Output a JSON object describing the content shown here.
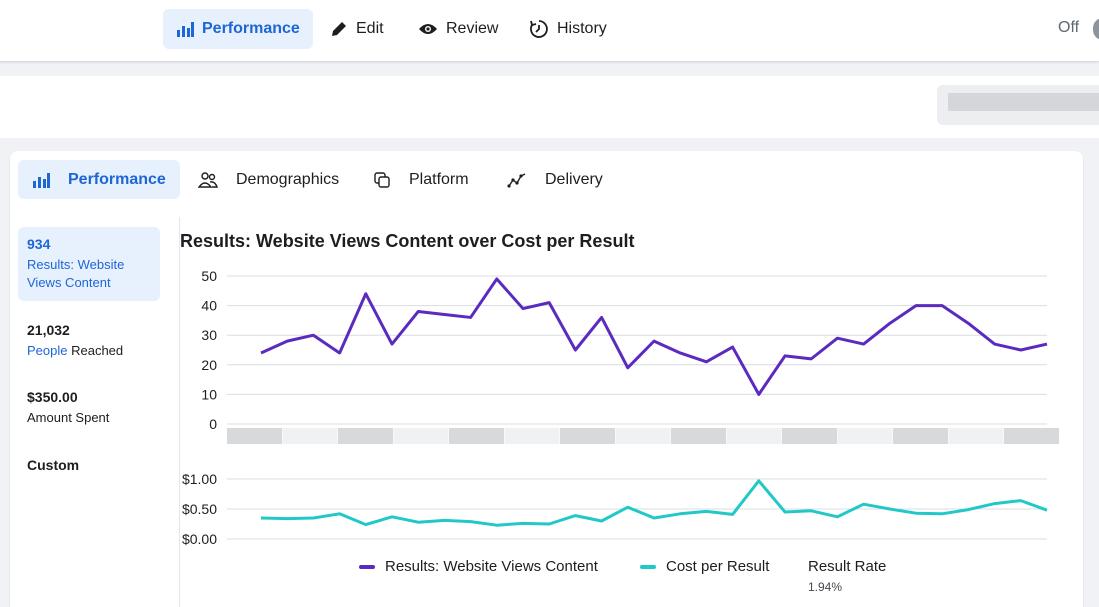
{
  "topbar": {
    "tabs": [
      {
        "label": "Performance",
        "icon": "bar-chart-icon",
        "active": true
      },
      {
        "label": "Edit",
        "icon": "pencil-icon"
      },
      {
        "label": "Review",
        "icon": "eye-icon"
      },
      {
        "label": "History",
        "icon": "history-icon"
      }
    ],
    "toggle_label": "Off"
  },
  "subtabs": [
    {
      "label": "Performance",
      "icon": "bar-chart-icon",
      "active": true
    },
    {
      "label": "Demographics",
      "icon": "people-icon"
    },
    {
      "label": "Platform",
      "icon": "platform-icon"
    },
    {
      "label": "Delivery",
      "icon": "delivery-icon"
    }
  ],
  "metrics": [
    {
      "value": "934",
      "label": "Results: Website Views Content",
      "active": true
    },
    {
      "value": "21,032",
      "label_highlight": "People",
      "label_rest": " Reached"
    },
    {
      "value": "$350.00",
      "label": "Amount Spent"
    },
    {
      "value": "Custom"
    }
  ],
  "colors": {
    "accent": "#1d66d6",
    "results_line": "#5b2bbf",
    "cost_line": "#22c8c8"
  },
  "chart_data": {
    "type": "line",
    "title": "Results: Website Views Content over Cost per Result",
    "results": {
      "name": "Results: Website Views Content",
      "yticks": [
        "50",
        "40",
        "30",
        "20",
        "10",
        "0"
      ],
      "ylim": [
        0,
        50
      ],
      "values": [
        24,
        28,
        30,
        24,
        44,
        27,
        38,
        37,
        36,
        49,
        39,
        41,
        25,
        36,
        19,
        28,
        24,
        21,
        26,
        10,
        23,
        22,
        29,
        27,
        34,
        40,
        40,
        34,
        27,
        25,
        27
      ]
    },
    "cost": {
      "name": "Cost per Result",
      "yticks": [
        "$1.00",
        "$0.50",
        "$0.00"
      ],
      "ylim": [
        0,
        1
      ],
      "values": [
        0.35,
        0.34,
        0.35,
        0.42,
        0.24,
        0.37,
        0.28,
        0.31,
        0.29,
        0.23,
        0.26,
        0.25,
        0.39,
        0.3,
        0.53,
        0.35,
        0.42,
        0.46,
        0.41,
        0.97,
        0.45,
        0.47,
        0.37,
        0.58,
        0.5,
        0.43,
        0.42,
        0.49,
        0.59,
        0.64,
        0.48
      ]
    },
    "legend": {
      "results": "Results: Website Views Content",
      "cost": "Cost per Result",
      "rate_label": "Result Rate",
      "rate_value": "1.94%"
    }
  }
}
